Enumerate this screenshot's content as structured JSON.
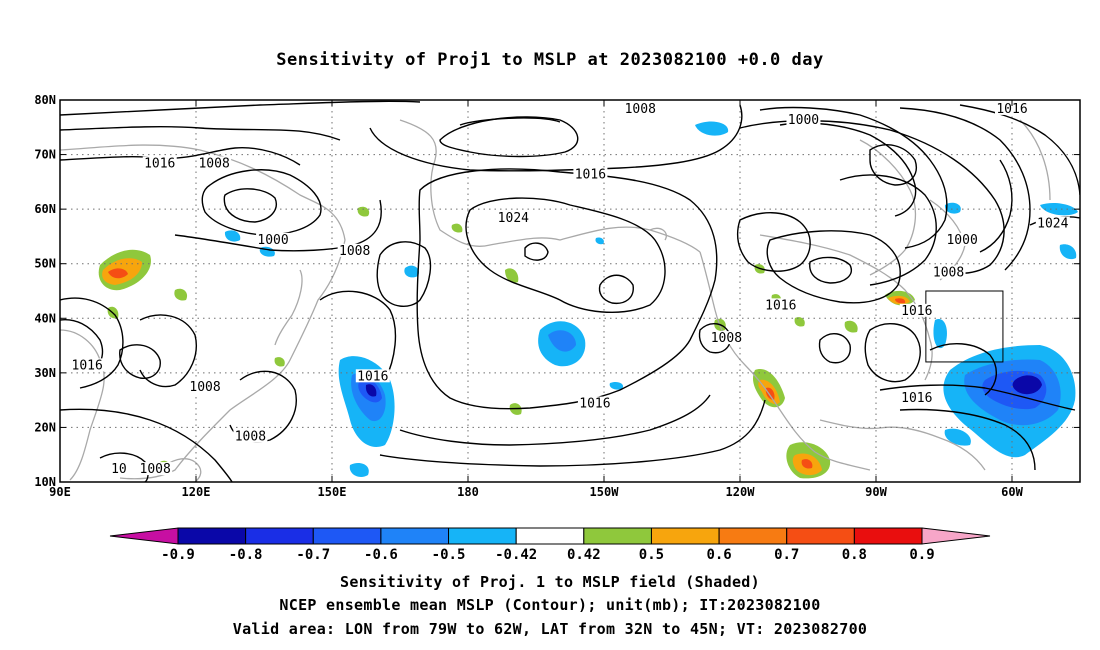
{
  "title": "Sensitivity of Proj1 to MSLP at 2023082100 +0.0 day",
  "map": {
    "lon_labels": [
      "90E",
      "120E",
      "150E",
      "180",
      "150W",
      "120W",
      "90W",
      "60W"
    ],
    "lon_values": [
      90,
      120,
      150,
      180,
      210,
      240,
      270,
      300
    ],
    "lat_labels": [
      "80N",
      "70N",
      "60N",
      "50N",
      "40N",
      "30N",
      "20N",
      "10N"
    ],
    "lat_values": [
      80,
      70,
      60,
      50,
      40,
      30,
      20,
      10
    ],
    "lon_range": [
      90,
      315
    ],
    "lat_range": [
      10,
      80
    ],
    "grid": "dotted",
    "contour_labels": [
      {
        "text": "1016",
        "lon": 112,
        "lat": 68
      },
      {
        "text": "1008",
        "lon": 124,
        "lat": 68
      },
      {
        "text": "1000",
        "lon": 137,
        "lat": 54
      },
      {
        "text": "1008",
        "lon": 155,
        "lat": 52
      },
      {
        "text": "1008",
        "lon": 218,
        "lat": 78
      },
      {
        "text": "1000",
        "lon": 254,
        "lat": 76
      },
      {
        "text": "1016",
        "lon": 300,
        "lat": 78
      },
      {
        "text": "1016",
        "lon": 207,
        "lat": 66
      },
      {
        "text": "1024",
        "lon": 190,
        "lat": 58
      },
      {
        "text": "1024",
        "lon": 309,
        "lat": 57
      },
      {
        "text": "1000",
        "lon": 289,
        "lat": 54
      },
      {
        "text": "1008",
        "lon": 286,
        "lat": 48
      },
      {
        "text": "1016",
        "lon": 249,
        "lat": 42
      },
      {
        "text": "1016",
        "lon": 279,
        "lat": 41
      },
      {
        "text": "1008",
        "lon": 237,
        "lat": 36
      },
      {
        "text": "1016",
        "lon": 96,
        "lat": 31
      },
      {
        "text": "1008",
        "lon": 122,
        "lat": 27
      },
      {
        "text": "1016",
        "lon": 159,
        "lat": 29
      },
      {
        "text": "1016",
        "lon": 208,
        "lat": 24
      },
      {
        "text": "1016",
        "lon": 279,
        "lat": 25
      },
      {
        "text": "1008",
        "lon": 132,
        "lat": 18
      },
      {
        "text": "10",
        "lon": 103,
        "lat": 12
      },
      {
        "text": "1008",
        "lon": 111,
        "lat": 12
      }
    ],
    "valid_box": {
      "lon_min": 281,
      "lon_max": 298,
      "lat_min": 32,
      "lat_max": 45
    }
  },
  "colorbar": {
    "labels": [
      "-0.9",
      "-0.8",
      "-0.7",
      "-0.6",
      "-0.5",
      "-0.42",
      "0.42",
      "0.5",
      "0.6",
      "0.7",
      "0.8",
      "0.9"
    ],
    "colors": [
      "#0a07a8",
      "#1a2ee6",
      "#1e58f5",
      "#1f83f8",
      "#16b4f7",
      "#ffffff",
      "#8fc83c",
      "#f7a50d",
      "#f77b12",
      "#f54e14",
      "#e90e0e"
    ],
    "under_color": "#c70fa2",
    "over_color": "#f7a6c8"
  },
  "captions": [
    "Sensitivity of Proj. 1 to MSLP field (Shaded)",
    "NCEP ensemble mean MSLP (Contour); unit(mb); IT:2023082100",
    "Valid area: LON from 79W to 62W, LAT from 32N to 45N; VT: 2023082700"
  ]
}
